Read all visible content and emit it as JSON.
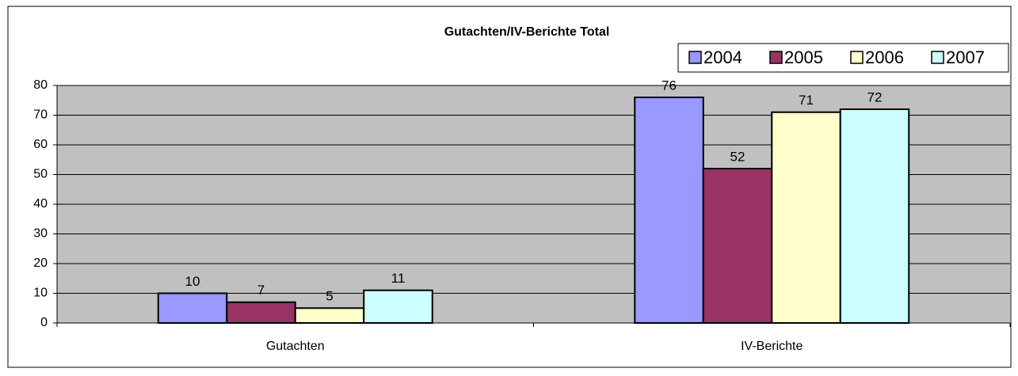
{
  "chart_data": {
    "type": "bar",
    "title": "Gutachten/IV-Berichte Total",
    "categories": [
      "Gutachten",
      "IV-Berichte"
    ],
    "series": [
      {
        "name": "2004",
        "color": "#9999ff",
        "values": [
          10,
          76
        ]
      },
      {
        "name": "2005",
        "color": "#993366",
        "values": [
          7,
          52
        ]
      },
      {
        "name": "2006",
        "color": "#ffffcc",
        "values": [
          5,
          71
        ]
      },
      {
        "name": "2007",
        "color": "#ccffff",
        "values": [
          11,
          72
        ]
      }
    ],
    "ylim": [
      0,
      80
    ],
    "yticks": [
      0,
      10,
      20,
      30,
      40,
      50,
      60,
      70,
      80
    ],
    "grid": true,
    "legend": "top-right"
  }
}
